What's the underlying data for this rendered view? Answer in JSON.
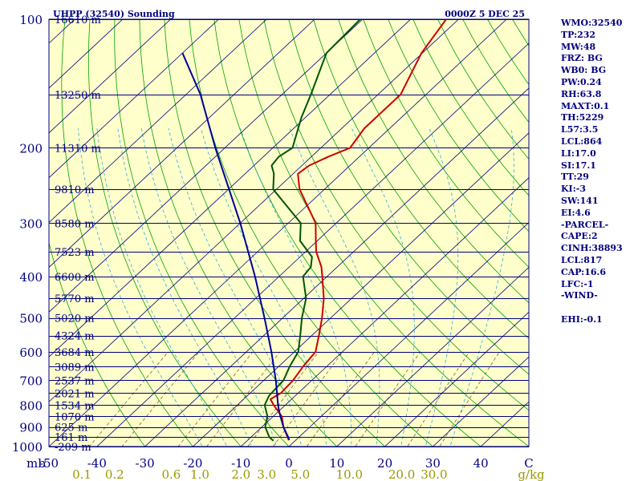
{
  "header": {
    "station": "UHPP (32540) Sounding",
    "datetime": "0000Z  5 DEC 25"
  },
  "colors": {
    "background": "#ffffcc",
    "isobar": "#000080",
    "isotherm": "#000080",
    "dry_adiabat": "#00a000",
    "moist_adiabat": "#33aadd",
    "mixing_ratio": "#806030",
    "temperature": "#cc0000",
    "dewpoint": "#005500",
    "parcel": "#000099",
    "axis_text": "#000080",
    "mixing_text": "#999900",
    "sidebar_text": "#000080"
  },
  "sidebar": {
    "lines": [
      "WMO:32540",
      "TP:232",
      "MW:48",
      "FRZ: BG",
      "WB0: BG",
      "PW:0.24",
      "RH:63.8",
      "MAXT:0.1",
      "TH:5229",
      "L57:3.5",
      "LCL:864",
      "LI:17.0",
      "SI:17.1",
      "TT:29",
      "KI:-3",
      "SW:141",
      "EI:4.6",
      "-PARCEL-",
      "CAPE:2",
      "CINH:38893",
      "LCL:817",
      "CAP:16.6",
      "LFC:-1",
      "-WIND-",
      "",
      "EHI:-0.1"
    ]
  },
  "chart_data": {
    "type": "line",
    "title": "UHPP (32540) Sounding",
    "subtitle": "0000Z  5 DEC 25",
    "diagram": "skew-T log-P",
    "x_axis": {
      "label": "°C",
      "range": [
        -50,
        50
      ],
      "ticks": [
        -50,
        -40,
        -30,
        -20,
        -10,
        0,
        10,
        20,
        30,
        40
      ],
      "tick_labels": [
        "-50",
        "-40",
        "-30",
        "-20",
        "-10",
        "0",
        "10",
        "20",
        "30",
        "40"
      ],
      "end_label": "C"
    },
    "y_axis": {
      "label": "mb",
      "scale": "log",
      "range": [
        100,
        1000
      ],
      "ticks": [
        100,
        200,
        300,
        400,
        500,
        600,
        700,
        800,
        900,
        1000
      ],
      "tick_labels": [
        "100",
        "200",
        "300",
        "400",
        "500",
        "600",
        "700",
        "800",
        "900",
        "1000"
      ]
    },
    "isobars_mb": [
      100,
      150,
      200,
      250,
      300,
      350,
      400,
      450,
      500,
      550,
      600,
      650,
      700,
      750,
      800,
      850,
      900,
      950,
      1000
    ],
    "height_labels": [
      {
        "p": 100,
        "label": "16610 m"
      },
      {
        "p": 150,
        "label": "13250 m"
      },
      {
        "p": 200,
        "label": "11310 m"
      },
      {
        "p": 250,
        "label": "9810 m"
      },
      {
        "p": 300,
        "label": "8580 m"
      },
      {
        "p": 350,
        "label": "7523 m"
      },
      {
        "p": 400,
        "label": "6600 m"
      },
      {
        "p": 450,
        "label": "5770 m"
      },
      {
        "p": 500,
        "label": "5020 m"
      },
      {
        "p": 550,
        "label": "4324 m"
      },
      {
        "p": 600,
        "label": "3684 m"
      },
      {
        "p": 650,
        "label": "3089 m"
      },
      {
        "p": 700,
        "label": "2537 m"
      },
      {
        "p": 750,
        "label": "2021 m"
      },
      {
        "p": 800,
        "label": "1534 m"
      },
      {
        "p": 850,
        "label": "1070 m"
      },
      {
        "p": 900,
        "label": "625 m"
      },
      {
        "p": 950,
        "label": "161 m"
      },
      {
        "p": 1000,
        "label": "-209 m"
      }
    ],
    "mixing_ratio_labels": [
      {
        "w": 0.1,
        "label": "0.1"
      },
      {
        "w": 0.2,
        "label": "0.2"
      },
      {
        "w": 0.6,
        "label": "0.6"
      },
      {
        "w": 1.0,
        "label": "1.0"
      },
      {
        "w": 2.0,
        "label": "2.0"
      },
      {
        "w": 3.0,
        "label": "3.0"
      },
      {
        "w": 5.0,
        "label": "5.0"
      },
      {
        "w": 10.0,
        "label": "10.0"
      },
      {
        "w": 20.0,
        "label": "20.0"
      },
      {
        "w": 30.0,
        "label": "30.0"
      }
    ],
    "mixing_ratio_unit": "g/kg",
    "series": [
      {
        "name": "Temperature",
        "color": "#cc0000",
        "points": [
          [
            967,
            -1.4
          ],
          [
            900,
            -5.5
          ],
          [
            850,
            -8.2
          ],
          [
            800,
            -12.4
          ],
          [
            775,
            -14.4
          ],
          [
            750,
            -13.6
          ],
          [
            700,
            -13.9
          ],
          [
            650,
            -14.9
          ],
          [
            600,
            -15.6
          ],
          [
            550,
            -18.5
          ],
          [
            500,
            -21.8
          ],
          [
            450,
            -25.8
          ],
          [
            400,
            -31.0
          ],
          [
            380,
            -33.3
          ],
          [
            350,
            -37.8
          ],
          [
            330,
            -40.3
          ],
          [
            300,
            -44.3
          ],
          [
            250,
            -55.2
          ],
          [
            230,
            -59.0
          ],
          [
            220,
            -58.5
          ],
          [
            210,
            -56.5
          ],
          [
            200,
            -53.9
          ],
          [
            180,
            -55.3
          ],
          [
            150,
            -55.3
          ],
          [
            120,
            -60.2
          ],
          [
            100,
            -62.6
          ]
        ]
      },
      {
        "name": "Dewpoint",
        "color": "#005500",
        "points": [
          [
            970,
            -4.5
          ],
          [
            950,
            -6.2
          ],
          [
            900,
            -9.3
          ],
          [
            850,
            -11.2
          ],
          [
            800,
            -14.3
          ],
          [
            760,
            -15.5
          ],
          [
            700,
            -15.9
          ],
          [
            650,
            -17.7
          ],
          [
            600,
            -19.2
          ],
          [
            550,
            -22.4
          ],
          [
            500,
            -26.0
          ],
          [
            450,
            -29.5
          ],
          [
            400,
            -35.0
          ],
          [
            380,
            -35.5
          ],
          [
            360,
            -37.5
          ],
          [
            330,
            -43.6
          ],
          [
            300,
            -47.4
          ],
          [
            250,
            -60.7
          ],
          [
            230,
            -64.0
          ],
          [
            220,
            -66.3
          ],
          [
            210,
            -66.8
          ],
          [
            200,
            -65.9
          ],
          [
            170,
            -70.8
          ],
          [
            150,
            -74.0
          ],
          [
            120,
            -80.0
          ],
          [
            100,
            -80.5
          ]
        ]
      },
      {
        "name": "Parcel",
        "color": "#000099",
        "points": [
          [
            965,
            -1.4
          ],
          [
            950,
            -2.3
          ],
          [
            900,
            -5.5
          ],
          [
            850,
            -8.5
          ],
          [
            817,
            -10.5
          ],
          [
            800,
            -11.5
          ],
          [
            700,
            -17.5
          ],
          [
            600,
            -24.8
          ],
          [
            500,
            -33.8
          ],
          [
            400,
            -45.0
          ],
          [
            300,
            -60.0
          ],
          [
            200,
            -82.0
          ],
          [
            150,
            -97.0
          ],
          [
            120,
            -110.0
          ]
        ]
      }
    ]
  }
}
